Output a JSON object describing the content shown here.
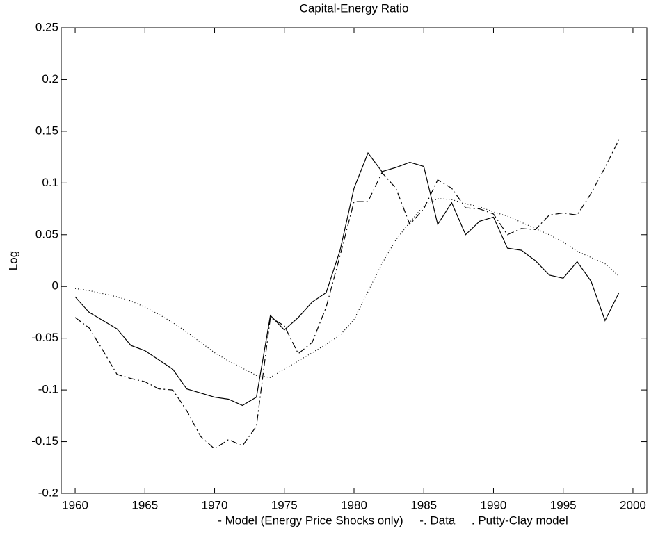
{
  "chart_data": {
    "type": "line",
    "title": "Capital-Energy Ratio",
    "ylabel": "Log",
    "xlabel": "- Model (Energy Price Shocks only)     -. Data     . Putty-Clay model",
    "x": [
      1960,
      1961,
      1962,
      1963,
      1964,
      1965,
      1966,
      1967,
      1968,
      1969,
      1970,
      1971,
      1972,
      1973,
      1974,
      1975,
      1976,
      1977,
      1978,
      1979,
      1980,
      1981,
      1982,
      1983,
      1984,
      1985,
      1986,
      1987,
      1988,
      1989,
      1990,
      1991,
      1992,
      1993,
      1994,
      1995,
      1996,
      1997,
      1998,
      1999
    ],
    "series": [
      {
        "color": "#000000",
        "dash": "solid",
        "values": [
          -0.01,
          -0.025,
          -0.033,
          -0.041,
          -0.057,
          -0.062,
          -0.071,
          -0.08,
          -0.099,
          -0.103,
          -0.107,
          -0.109,
          -0.115,
          -0.107,
          -0.028,
          -0.042,
          -0.03,
          -0.015,
          -0.006,
          0.035,
          0.095,
          0.129,
          0.111,
          0.115,
          0.12,
          0.116,
          0.06,
          0.081,
          0.05,
          0.063,
          0.067,
          0.037,
          0.035,
          0.025,
          0.011,
          0.008,
          0.024,
          0.005,
          -0.033,
          -0.006
        ]
      },
      {
        "color": "#000000",
        "dash": "dashdot",
        "values": [
          -0.03,
          -0.04,
          -0.062,
          -0.085,
          -0.089,
          -0.092,
          -0.099,
          -0.1,
          -0.12,
          -0.145,
          -0.157,
          -0.148,
          -0.154,
          -0.135,
          -0.03,
          -0.038,
          -0.065,
          -0.054,
          -0.02,
          0.03,
          0.082,
          0.082,
          0.11,
          0.095,
          0.06,
          0.075,
          0.103,
          0.095,
          0.076,
          0.075,
          0.07,
          0.05,
          0.056,
          0.055,
          0.069,
          0.071,
          0.069,
          0.09,
          0.115,
          0.142
        ]
      },
      {
        "color": "#000000",
        "dash": "dotted",
        "values": [
          -0.002,
          -0.004,
          -0.007,
          -0.01,
          -0.014,
          -0.02,
          -0.027,
          -0.035,
          -0.044,
          -0.054,
          -0.064,
          -0.072,
          -0.079,
          -0.086,
          -0.088,
          -0.08,
          -0.072,
          -0.064,
          -0.056,
          -0.047,
          -0.032,
          -0.005,
          0.022,
          0.045,
          0.062,
          0.078,
          0.085,
          0.084,
          0.08,
          0.077,
          0.072,
          0.068,
          0.062,
          0.056,
          0.05,
          0.043,
          0.034,
          0.028,
          0.022,
          0.01
        ]
      }
    ],
    "xlim": [
      1959,
      2001
    ],
    "xticks": [
      1960,
      1965,
      1970,
      1975,
      1980,
      1985,
      1990,
      1995,
      2000
    ],
    "ylim": [
      -0.2,
      0.25
    ],
    "yticks": [
      -0.2,
      -0.15,
      -0.1,
      -0.05,
      0,
      0.05,
      0.1,
      0.15,
      0.2,
      0.25
    ],
    "grid": false
  }
}
